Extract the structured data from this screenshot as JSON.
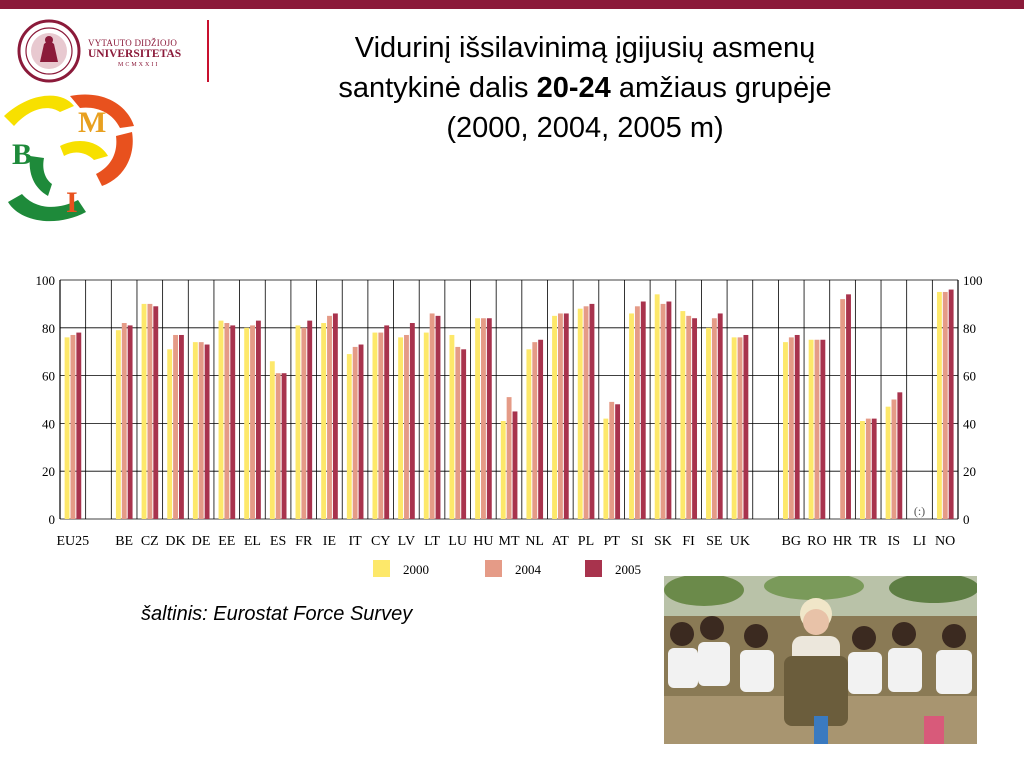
{
  "header": {
    "university_line1": "VYTAUTO DIDŽIOJO",
    "university_line2": "UNIVERSITETAS",
    "university_line3": "MCMXXII"
  },
  "title": {
    "line1": "Vidurinį išsilavinimą įgijusių asmenų",
    "line2_pre": "santykinė dalis ",
    "line2_bold": "20-24",
    "line2_post": " amžiaus grupėje",
    "line3": "(2000, 2004, 2005 m)"
  },
  "source_text": "šaltinis: Eurostat Force Survey",
  "bmi_logo_letters": [
    "B",
    "M",
    "I"
  ],
  "colors": {
    "top_bar": "#8b1a3a",
    "series_2000": "#fde86a",
    "series_2004": "#e59b87",
    "series_2005": "#a8334d"
  },
  "chart_data": {
    "type": "bar",
    "categories": [
      "EU25",
      "BE",
      "CZ",
      "DK",
      "DE",
      "EE",
      "EL",
      "ES",
      "FR",
      "IE",
      "IT",
      "CY",
      "LV",
      "LT",
      "LU",
      "HU",
      "MT",
      "NL",
      "AT",
      "PL",
      "PT",
      "SI",
      "SK",
      "FI",
      "SE",
      "UK",
      "BG",
      "RO",
      "HR",
      "TR",
      "IS",
      "LI",
      "NO"
    ],
    "series": [
      {
        "name": "2000",
        "values": [
          76,
          79,
          90,
          71,
          74,
          83,
          80,
          66,
          81,
          82,
          69,
          78,
          76,
          78,
          77,
          84,
          41,
          71,
          85,
          88,
          42,
          86,
          94,
          87,
          80,
          76,
          74,
          75,
          null,
          41,
          47,
          null,
          95
        ]
      },
      {
        "name": "2004",
        "values": [
          77,
          82,
          90,
          77,
          74,
          82,
          81,
          61,
          80,
          85,
          72,
          78,
          77,
          86,
          72,
          84,
          51,
          74,
          86,
          89,
          49,
          89,
          90,
          85,
          84,
          76,
          76,
          75,
          92,
          42,
          50,
          null,
          95
        ]
      },
      {
        "name": "2005",
        "values": [
          78,
          81,
          89,
          77,
          73,
          81,
          83,
          61,
          83,
          86,
          73,
          81,
          82,
          85,
          71,
          84,
          45,
          75,
          86,
          90,
          48,
          91,
          91,
          84,
          86,
          77,
          77,
          75,
          94,
          42,
          53,
          null,
          96
        ]
      }
    ],
    "annotations": [
      {
        "category": "LI",
        "text": "(:)"
      }
    ],
    "ylim": [
      0,
      100
    ],
    "yticks": [
      0,
      20,
      40,
      60,
      80,
      100
    ],
    "grid": true,
    "legend_position": "bottom"
  }
}
